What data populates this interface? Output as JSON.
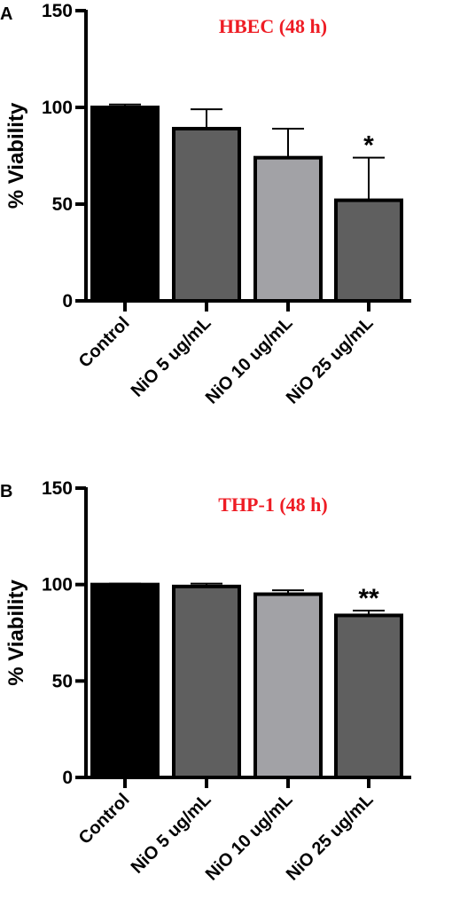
{
  "chart_data": [
    {
      "panel": "A",
      "type": "bar",
      "title": "HBEC (48 h)",
      "xlabel": "",
      "ylabel": "% Viability",
      "ylim": [
        0,
        150
      ],
      "yticks": [
        0,
        50,
        100,
        150
      ],
      "categories": [
        "Control",
        "NiO 5 ug/mL",
        "NiO 10 ug/mL",
        "NiO 25 ug/mL"
      ],
      "values": [
        100,
        89,
        74,
        52
      ],
      "errors": [
        1.5,
        10,
        15,
        22
      ],
      "bar_colors": [
        "#000000",
        "#5f5f5f",
        "#a2a2a6",
        "#5f5f5f"
      ],
      "annotations": [
        "",
        "",
        "",
        "*"
      ]
    },
    {
      "panel": "B",
      "type": "bar",
      "title": "THP-1 (48 h)",
      "xlabel": "",
      "ylabel": "% Viability",
      "ylim": [
        0,
        150
      ],
      "yticks": [
        0,
        50,
        100,
        150
      ],
      "categories": [
        "Control",
        "NiO 5 ug/mL",
        "NiO 10 ug/mL",
        "NiO 25 ug/mL"
      ],
      "values": [
        100,
        99,
        95,
        84
      ],
      "errors": [
        0.5,
        1.5,
        2,
        2.5
      ],
      "bar_colors": [
        "#000000",
        "#5f5f5f",
        "#a2a2a6",
        "#5f5f5f"
      ],
      "annotations": [
        "",
        "",
        "",
        "**"
      ]
    }
  ]
}
